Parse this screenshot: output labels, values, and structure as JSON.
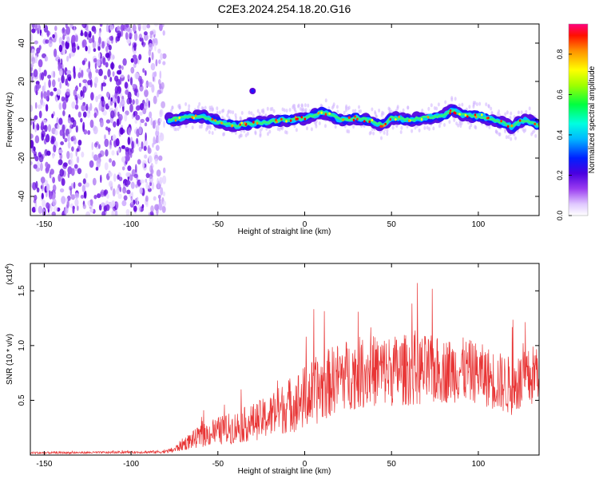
{
  "title": "C2E3.2024.254.18.20.G16",
  "chart_data": [
    {
      "type": "heatmap",
      "name": "spectrogram",
      "xlabel": "Height of straight line (km)",
      "ylabel": "Frequency (Hz)",
      "xlim": [
        -158,
        135
      ],
      "ylim": [
        -50,
        50
      ],
      "xticks": [
        -150,
        -100,
        -50,
        0,
        50,
        100
      ],
      "yticks": [
        -40,
        -20,
        0,
        20,
        40
      ],
      "colorbar": {
        "label": "Normalized spectral amplitude",
        "range": [
          0,
          0.95
        ],
        "ticks": [
          "0.0",
          "0.2",
          "0.4",
          "0.6",
          "0.8"
        ]
      },
      "noise_region_x": [
        -158,
        -78
      ],
      "trace": {
        "x": [
          -78,
          -70,
          -60,
          -50,
          -40,
          -30,
          -20,
          -10,
          0,
          5,
          10,
          15,
          20,
          30,
          40,
          45,
          50,
          60,
          70,
          80,
          85,
          90,
          95,
          100,
          110,
          120,
          125,
          130,
          135
        ],
        "y": [
          0,
          1,
          2,
          -1,
          -3,
          -2,
          -1,
          0,
          1,
          2,
          4,
          3,
          0,
          1,
          -1,
          -3,
          1,
          0,
          1,
          2,
          5,
          3,
          2,
          2,
          0,
          -4,
          0,
          -1,
          -3
        ]
      },
      "isolated_blob": {
        "x": -30,
        "y": 15
      }
    },
    {
      "type": "line",
      "name": "snr",
      "xlabel": "Height of straight line (km)",
      "ylabel": "SNR (10 * v/v)",
      "yscale_label": "(x10",
      "yscale_exp": "4",
      "xlim": [
        -158,
        135
      ],
      "ylim": [
        0,
        1.75
      ],
      "xticks": [
        -150,
        -100,
        -50,
        0,
        50,
        100
      ],
      "yticks": [
        "0.5",
        "1.0",
        "1.5"
      ],
      "color": "#e83535",
      "envelope": {
        "x": [
          -158,
          -100,
          -80,
          -75,
          -70,
          -60,
          -50,
          -40,
          -30,
          -20,
          -10,
          0,
          10,
          20,
          30,
          40,
          50,
          60,
          70,
          80,
          90,
          100,
          110,
          120,
          130,
          135
        ],
        "mean": [
          0.02,
          0.025,
          0.03,
          0.05,
          0.1,
          0.17,
          0.22,
          0.25,
          0.3,
          0.35,
          0.45,
          0.52,
          0.62,
          0.72,
          0.75,
          0.77,
          0.77,
          0.78,
          0.77,
          0.77,
          0.78,
          0.75,
          0.68,
          0.62,
          0.7,
          0.8
        ],
        "amp": [
          0.01,
          0.01,
          0.015,
          0.03,
          0.06,
          0.1,
          0.13,
          0.15,
          0.17,
          0.2,
          0.25,
          0.3,
          0.32,
          0.32,
          0.33,
          0.33,
          0.33,
          0.33,
          0.33,
          0.3,
          0.3,
          0.28,
          0.28,
          0.27,
          0.28,
          0.3
        ]
      }
    }
  ]
}
